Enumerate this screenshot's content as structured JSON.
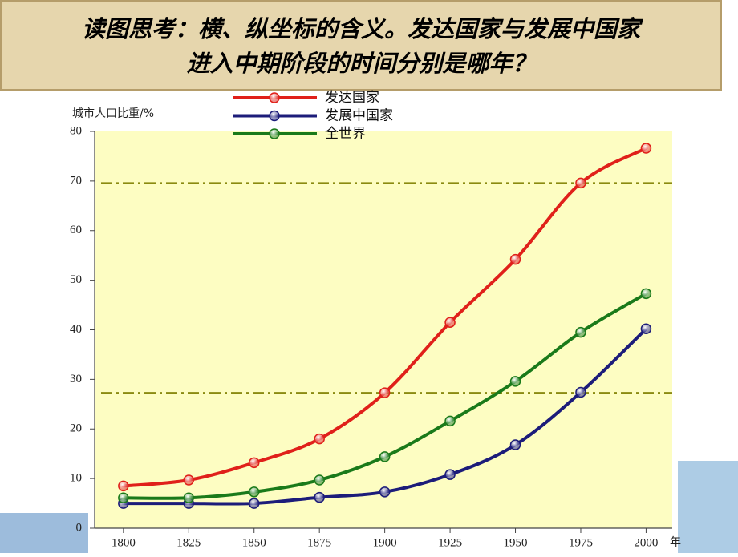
{
  "chart_data": {
    "type": "line",
    "title": [
      "读图思考：横、纵坐标的含义。发达国家与发展中国家",
      "进入中期阶段的时间分别是哪年？"
    ],
    "y_label": "城市人口比重/%",
    "x_label": "年",
    "x": [
      1800,
      1825,
      1850,
      1875,
      1900,
      1925,
      1950,
      1975,
      2000
    ],
    "xlim": [
      1789,
      2010
    ],
    "xticks": [
      1800,
      1825,
      1850,
      1875,
      1900,
      1925,
      1950,
      1975,
      2000
    ],
    "ylim": [
      0,
      80
    ],
    "yticks": [
      0,
      10,
      20,
      30,
      40,
      50,
      60,
      70,
      80
    ],
    "reference_lines": [
      69.6,
      27.3
    ],
    "reference_color": "#8a8a10",
    "plot_background": "#fdfdc2",
    "legend": "top",
    "series": [
      {
        "name": "发达国家",
        "color": "#e0201a",
        "values": [
          8.5,
          9.7,
          13.2,
          18,
          27.3,
          41.5,
          54.2,
          69.6,
          76.6
        ]
      },
      {
        "name": "发展中国家",
        "color": "#1c1c7a",
        "values": [
          5,
          5,
          5,
          6.2,
          7.3,
          10.8,
          16.8,
          27.4,
          40.2
        ]
      },
      {
        "name": "全世界",
        "color": "#1a7a1a",
        "values": [
          6.1,
          6.1,
          7.3,
          9.7,
          14.4,
          21.6,
          29.6,
          39.5,
          47.3
        ]
      }
    ]
  }
}
